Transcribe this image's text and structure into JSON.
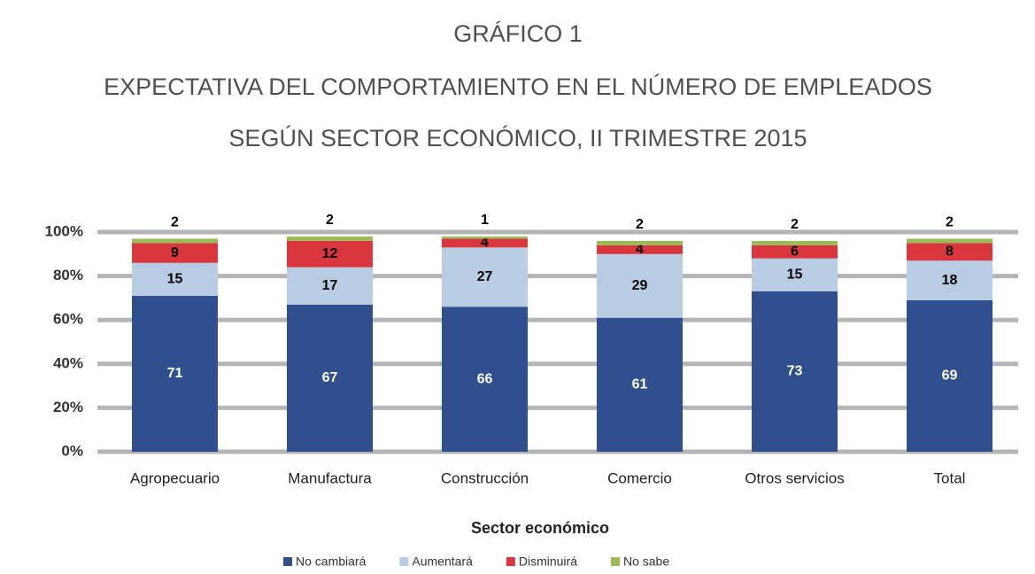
{
  "chart_data": {
    "type": "stacked_bar",
    "title": "GRÁFICO 1",
    "subtitle": [
      "EXPECTATIVA DEL COMPORTAMIENTO EN EL NÚMERO DE EMPLEADOS",
      "SEGÚN SECTOR ECONÓMICO, II TRIMESTRE 2015"
    ],
    "x_label": "Sector económico",
    "categories": [
      "Agropecuario",
      "Manufactura",
      "Construcción",
      "Comercio",
      "Otros servicios",
      "Total"
    ],
    "series": [
      {
        "name": "No cambiará",
        "color": "#2f4f8f",
        "values": [
          71,
          67,
          66,
          61,
          73,
          69
        ]
      },
      {
        "name": "Aumentará",
        "color": "#b8cce4",
        "values": [
          15,
          17,
          27,
          29,
          15,
          18
        ]
      },
      {
        "name": "Disminuirá",
        "color": "#d9363e",
        "values": [
          9,
          12,
          4,
          4,
          6,
          8
        ]
      },
      {
        "name": "No sabe",
        "color": "#9bbb59",
        "values": [
          2,
          2,
          1,
          2,
          2,
          2
        ]
      }
    ],
    "ylim": [
      0,
      100
    ],
    "yticks": [
      {
        "value": 0,
        "label": "0%"
      },
      {
        "value": 20,
        "label": "20%"
      },
      {
        "value": 40,
        "label": "40%"
      },
      {
        "value": 60,
        "label": "60%"
      },
      {
        "value": 80,
        "label": "80%"
      },
      {
        "value": 100,
        "label": "100%"
      }
    ],
    "grid": true,
    "legend": "bottom"
  }
}
